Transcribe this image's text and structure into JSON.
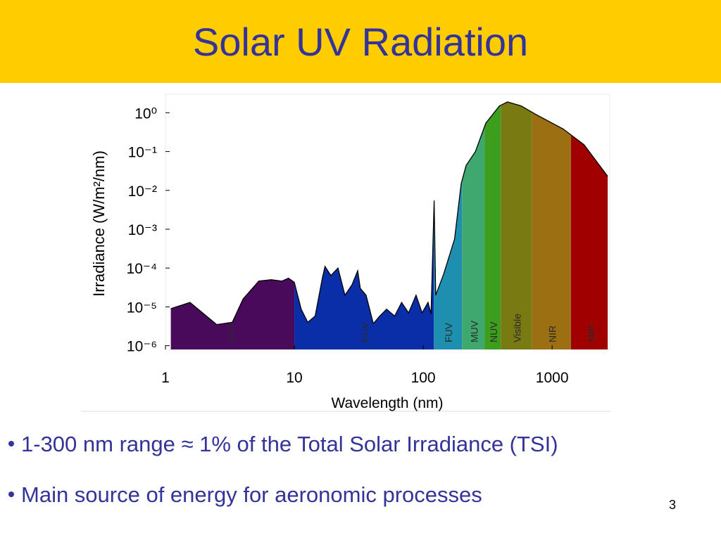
{
  "slide": {
    "title": "Solar UV Radiation",
    "bullets": [
      "1-300 nm range ≈ 1% of the Total Solar Irradiance (TSI)",
      "Main source of energy for aeronomic processes"
    ],
    "page_number": 3
  },
  "chart_data": {
    "type": "area",
    "x_label": "Wavelength (nm)",
    "y_label": "Irradiance (W/m²/nm)",
    "log_x": true,
    "log_y": true,
    "xlim": [
      1,
      2800
    ],
    "ylim": [
      8e-07,
      3
    ],
    "xticks": [
      1,
      10,
      100,
      1000
    ],
    "yticks": [
      {
        "value": 1,
        "label": "10⁰"
      },
      {
        "value": 0.1,
        "label": "10⁻¹"
      },
      {
        "value": 0.01,
        "label": "10⁻²"
      },
      {
        "value": 0.001,
        "label": "10⁻³"
      },
      {
        "value": 0.0001,
        "label": "10⁻⁴"
      },
      {
        "value": 1e-05,
        "label": "10⁻⁵"
      },
      {
        "value": 1e-06,
        "label": "10⁻⁶"
      }
    ],
    "line_color": "#000000",
    "x": [
      1.1,
      1.55,
      2.5,
      3.3,
      4,
      5.3,
      6.6,
      8,
      9,
      10,
      11.3,
      12.7,
      14.5,
      16.5,
      17.3,
      19.2,
      21.8,
      24.7,
      28,
      31,
      32.5,
      36,
      41,
      46,
      52,
      60,
      68,
      77,
      88,
      98,
      109,
      115,
      121.6,
      125,
      144,
      175,
      197,
      215,
      254,
      306,
      390,
      450,
      575,
      740,
      1220,
      1770,
      2700
    ],
    "values": [
      9e-06,
      1.3e-05,
      3.5e-06,
      4e-06,
      1.6e-05,
      4.6e-05,
      5e-05,
      4.6e-05,
      5.5e-05,
      4.3e-05,
      8.7e-06,
      4e-06,
      5.8e-06,
      5.6e-05,
      0.00011,
      6.4e-05,
      0.0001,
      2e-05,
      3.7e-05,
      8.5e-05,
      3e-05,
      2e-05,
      3.7e-06,
      5.8e-06,
      8.7e-06,
      5.8e-06,
      1.3e-05,
      7e-06,
      2e-05,
      7e-06,
      1.3e-05,
      6.5e-06,
      0.0055,
      2e-05,
      7e-05,
      0.00056,
      0.015,
      0.044,
      0.1,
      0.54,
      1.5,
      1.9,
      1.5,
      0.92,
      0.38,
      0.15,
      0.023
    ],
    "bands": [
      {
        "name": "XUV",
        "from": 1,
        "to": 10,
        "color": "#4a0a5c"
      },
      {
        "name": "EUV",
        "from": 10,
        "to": 121,
        "color": "#0a2ea8"
      },
      {
        "name": "FUV",
        "from": 121,
        "to": 200,
        "color": "#1f8fb0"
      },
      {
        "name": "MUV",
        "from": 200,
        "to": 300,
        "color": "#3ea86e"
      },
      {
        "name": "NUV",
        "from": 300,
        "to": 400,
        "color": "#3c9e1c"
      },
      {
        "name": "Visible",
        "from": 400,
        "to": 700,
        "color": "#7a7a12"
      },
      {
        "name": "NIR",
        "from": 700,
        "to": 1400,
        "color": "#9c7012"
      },
      {
        "name": "MIR",
        "from": 1400,
        "to": 2800,
        "color": "#a00000"
      }
    ]
  }
}
